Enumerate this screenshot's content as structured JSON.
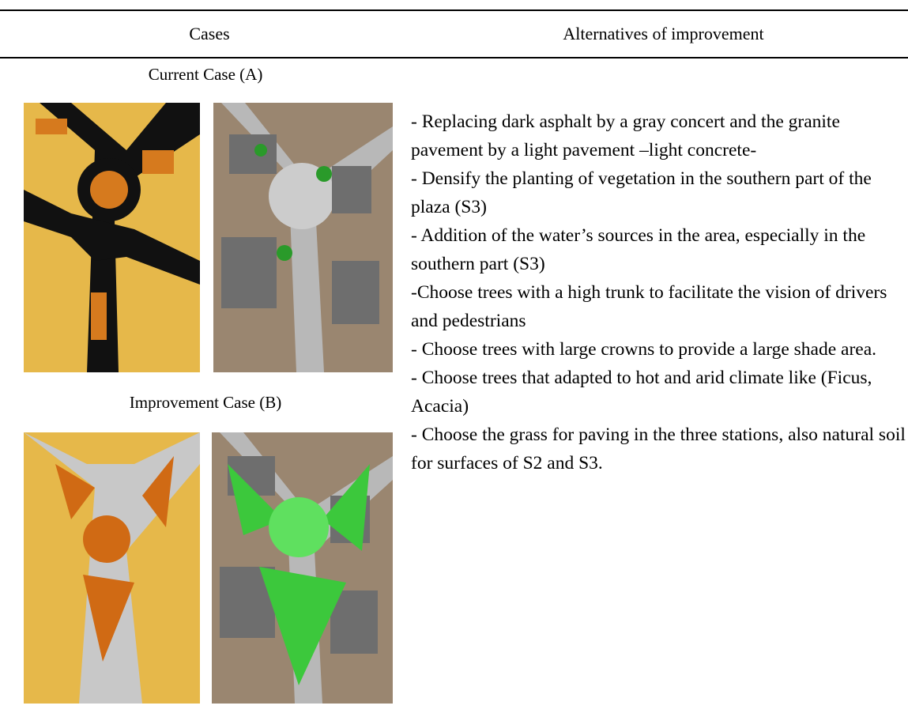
{
  "table": {
    "header": [
      "Cases",
      "Alternatives of improvement"
    ],
    "cases": [
      "Current Case (A)",
      "Improvement Case (B)"
    ],
    "alternatives": [
      "- Replacing dark asphalt by a gray concert and the granite pavement by a light pavement –light concrete-",
      "- Densify the planting of vegetation in the southern part of the plaza (S3)",
      "- Addition of the water’s sources in the area, especially in the southern part (S3)",
      "-Choose trees with a high trunk to facilitate the vision of drivers and pedestrians",
      "- Choose trees with large crowns to provide a large shade area.",
      "- Choose trees that adapted to hot and arid climate like (Ficus, Acacia)",
      "- Choose the grass for paving in the three stations, also natural soil for surfaces of S2 and S3."
    ]
  }
}
